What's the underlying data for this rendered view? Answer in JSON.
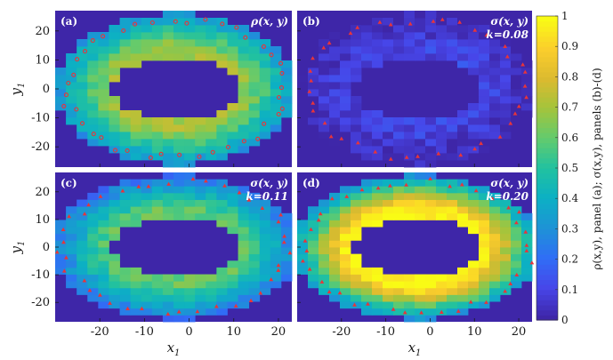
{
  "figure": {
    "xlabel": "x",
    "xlabel_sub": "1",
    "ylabel": "y",
    "ylabel_sub": "1",
    "colorbar_label": "ρ(x,y), panel (a); σ(x,y), panels (b)-(d)",
    "colormap": "parula",
    "background_color": "#3e26a8",
    "marker_color": "#e8343a"
  },
  "chart_data": [
    {
      "type": "heatmap",
      "panel": "a",
      "tag": "(a)",
      "title": "ρ(x, y)",
      "k_label": "",
      "xlim": [
        -30,
        23
      ],
      "ylim": [
        -27,
        27
      ],
      "xticks": [
        -20,
        -10,
        0,
        10,
        20
      ],
      "yticks": [
        -20,
        -10,
        0,
        10,
        20
      ],
      "ring": {
        "rx": [
          14,
          27
        ],
        "ry": [
          11,
          26
        ],
        "x0": -3
      },
      "value_range": [
        0.3,
        0.7
      ],
      "markers": "o"
    },
    {
      "type": "heatmap",
      "panel": "b",
      "tag": "(b)",
      "title": "σ(x, y)",
      "k_label": "k=0.08",
      "xlim": [
        -30,
        23
      ],
      "ylim": [
        -27,
        27
      ],
      "xticks": [
        -20,
        -10,
        0,
        10,
        20
      ],
      "yticks": [
        -20,
        -10,
        0,
        10,
        20
      ],
      "ring": {
        "rx": [
          14,
          27
        ],
        "ry": [
          11,
          26
        ],
        "x0": -3
      },
      "value_range": [
        0.0,
        0.1
      ],
      "markers": "^"
    },
    {
      "type": "heatmap",
      "panel": "c",
      "tag": "(c)",
      "title": "σ(x, y)",
      "k_label": "k=0.11",
      "xlim": [
        -30,
        23
      ],
      "ylim": [
        -27,
        27
      ],
      "xticks": [
        -20,
        -10,
        0,
        10,
        20
      ],
      "yticks": [
        -20,
        -10,
        0,
        10,
        20
      ],
      "ring": {
        "rx": [
          14,
          28
        ],
        "ry": [
          11,
          26
        ],
        "x0": -3
      },
      "value_range": [
        0.2,
        0.6
      ],
      "markers": "^"
    },
    {
      "type": "heatmap",
      "panel": "d",
      "tag": "(d)",
      "title": "σ(x, y)",
      "k_label": "k=0.20",
      "xlim": [
        -30,
        23
      ],
      "ylim": [
        -27,
        27
      ],
      "xticks": [
        -20,
        -10,
        0,
        10,
        20
      ],
      "yticks": [
        -20,
        -10,
        0,
        10,
        20
      ],
      "ring": {
        "rx": [
          14,
          28
        ],
        "ry": [
          11,
          26
        ],
        "x0": -3
      },
      "value_range": [
        0.3,
        1.0
      ],
      "markers": "^"
    },
    {
      "type": "colorbar",
      "ylim": [
        0,
        1
      ],
      "ticks": [
        "0",
        "0.1",
        "0.2",
        "0.3",
        "0.4",
        "0.5",
        "0.6",
        "0.7",
        "0.8",
        "0.9",
        "1"
      ]
    }
  ]
}
